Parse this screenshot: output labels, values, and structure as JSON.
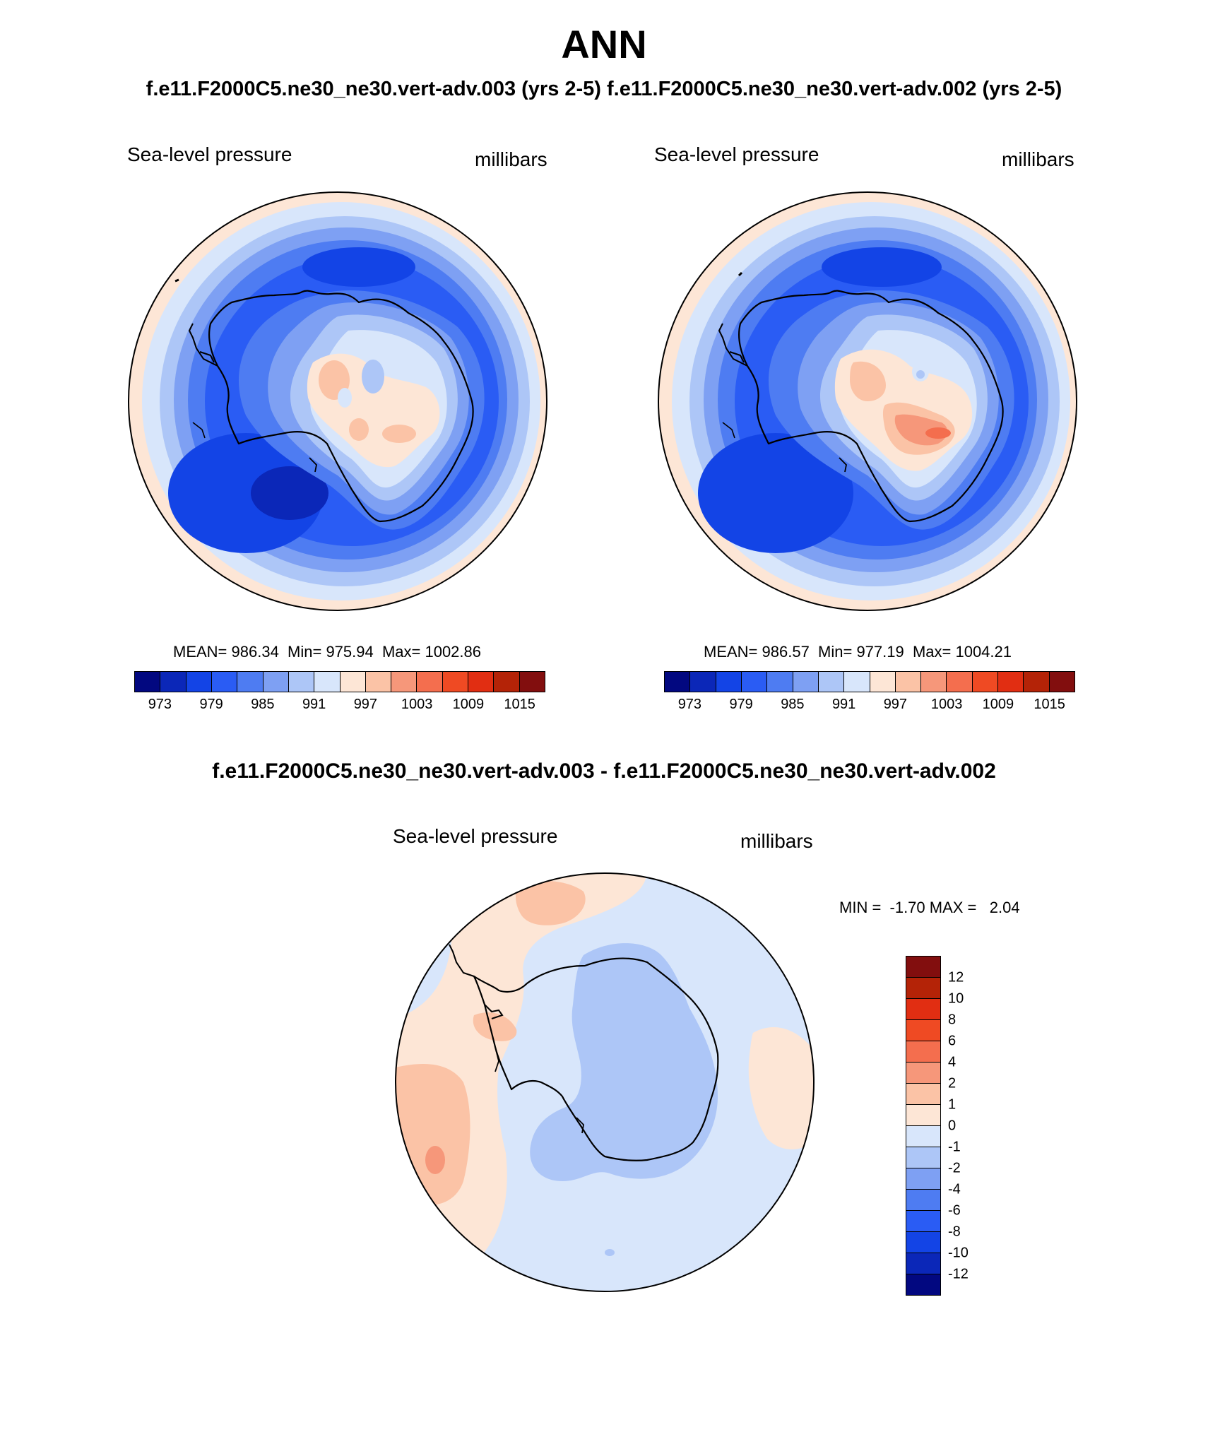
{
  "header": {
    "season": "ANN",
    "runs_line": "f.e11.F2000C5.ne30_ne30.vert-adv.003 (yrs 2-5)  f.e11.F2000C5.ne30_ne30.vert-adv.002 (yrs 2-5)"
  },
  "panels": [
    {
      "variable": "Sea-level pressure",
      "units": "millibars",
      "stats": "MEAN= 986.34  Min= 975.94  Max= 1002.86"
    },
    {
      "variable": "Sea-level pressure",
      "units": "millibars",
      "stats": "MEAN= 986.57  Min= 977.19  Max= 1004.21"
    }
  ],
  "difference": {
    "title": "f.e11.F2000C5.ne30_ne30.vert-adv.003 - f.e11.F2000C5.ne30_ne30.vert-adv.002",
    "variable": "Sea-level pressure",
    "units": "millibars",
    "stats": "MIN =  -1.70 MAX =   2.04"
  },
  "colorbar_abs": {
    "labels": [
      "973",
      "979",
      "985",
      "991",
      "997",
      "1003",
      "1009",
      "1015"
    ],
    "colors": [
      "#020880",
      "#0b27b8",
      "#1344e6",
      "#2a5cf4",
      "#4e7cf2",
      "#7ea0f3",
      "#adc6f7",
      "#d8e6fb",
      "#fde6d6",
      "#fbc3a6",
      "#f6977a",
      "#f46e4e",
      "#ef4a23",
      "#e12e12",
      "#b42307",
      "#820e0e"
    ]
  },
  "colorbar_diff": {
    "labels": [
      "12",
      "10",
      "8",
      "6",
      "4",
      "2",
      "1",
      "0",
      "-1",
      "-2",
      "-4",
      "-6",
      "-8",
      "-10",
      "-12"
    ],
    "colors_top_to_bottom": [
      "#820e0e",
      "#b42307",
      "#e12e12",
      "#ef4a23",
      "#f46e4e",
      "#f6977a",
      "#fbc3a6",
      "#fde6d6",
      "#d8e6fb",
      "#adc6f7",
      "#7ea0f3",
      "#4e7cf2",
      "#2a5cf4",
      "#1344e6",
      "#0b27b8",
      "#020880"
    ]
  }
}
